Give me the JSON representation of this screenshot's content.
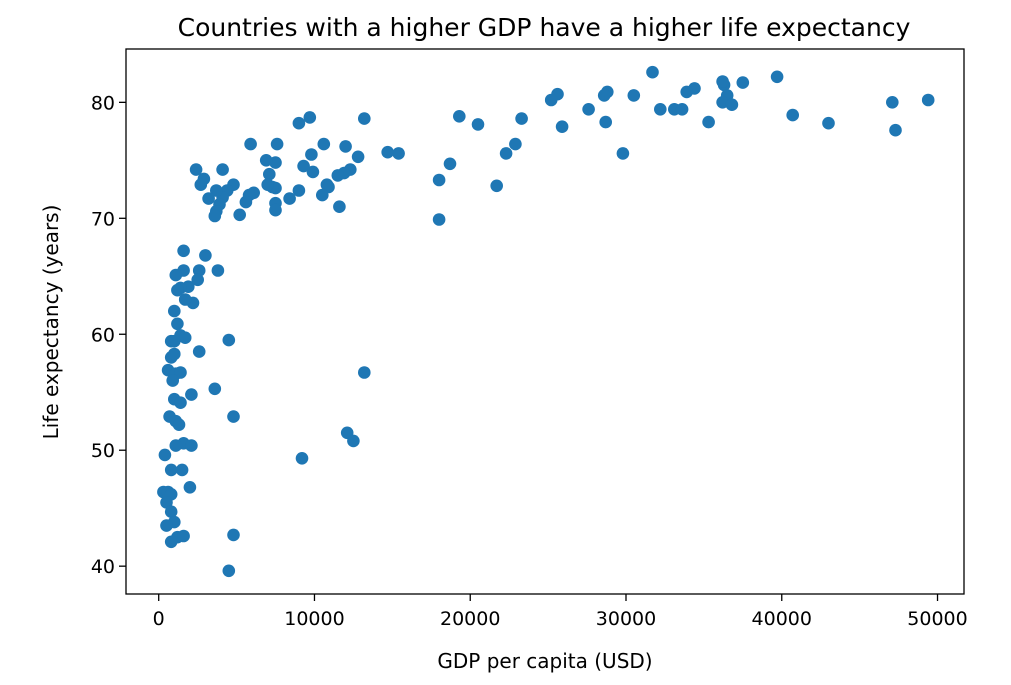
{
  "chart_data": {
    "type": "scatter",
    "title": "Countries with a higher GDP have a higher life expectancy",
    "xlabel": "GDP per capita (USD)",
    "ylabel": "Life expectancy (years)",
    "xlim": [
      -2100,
      51700
    ],
    "ylim": [
      37.6,
      84.6
    ],
    "xticks": [
      0,
      10000,
      20000,
      30000,
      40000,
      50000
    ],
    "yticks": [
      40,
      50,
      60,
      70,
      80
    ],
    "grid": false,
    "marker_color": "#1f77b4",
    "points": [
      [
        36300,
        81.5
      ],
      [
        31700,
        82.6
      ],
      [
        39700,
        82.2
      ],
      [
        37500,
        81.7
      ],
      [
        36200,
        81.8
      ],
      [
        36500,
        80.6
      ],
      [
        36200,
        80.0
      ],
      [
        36800,
        79.8
      ],
      [
        34400,
        81.2
      ],
      [
        33900,
        80.9
      ],
      [
        30500,
        80.6
      ],
      [
        28800,
        80.9
      ],
      [
        28600,
        80.6
      ],
      [
        27600,
        79.4
      ],
      [
        25600,
        80.7
      ],
      [
        25200,
        80.2
      ],
      [
        33100,
        79.4
      ],
      [
        33600,
        79.4
      ],
      [
        32200,
        79.4
      ],
      [
        35300,
        78.3
      ],
      [
        47100,
        80.0
      ],
      [
        49400,
        80.2
      ],
      [
        47300,
        77.6
      ],
      [
        40700,
        78.9
      ],
      [
        43000,
        78.2
      ],
      [
        28700,
        78.3
      ],
      [
        25900,
        77.9
      ],
      [
        29800,
        75.6
      ],
      [
        19300,
        78.8
      ],
      [
        20500,
        78.1
      ],
      [
        23300,
        78.6
      ],
      [
        22900,
        76.4
      ],
      [
        22300,
        75.6
      ],
      [
        21700,
        72.8
      ],
      [
        18000,
        73.3
      ],
      [
        18700,
        74.7
      ],
      [
        18000,
        69.9
      ],
      [
        15400,
        75.6
      ],
      [
        14700,
        75.7
      ],
      [
        13200,
        78.6
      ],
      [
        12800,
        75.3
      ],
      [
        12300,
        74.2
      ],
      [
        11900,
        73.9
      ],
      [
        12000,
        76.2
      ],
      [
        11500,
        73.7
      ],
      [
        11600,
        71.0
      ],
      [
        10800,
        72.9
      ],
      [
        10900,
        72.7
      ],
      [
        10600,
        76.4
      ],
      [
        10500,
        72.0
      ],
      [
        9900,
        74.0
      ],
      [
        9800,
        75.5
      ],
      [
        9700,
        78.7
      ],
      [
        9300,
        74.5
      ],
      [
        9000,
        78.2
      ],
      [
        9000,
        72.4
      ],
      [
        8400,
        71.7
      ],
      [
        7600,
        76.4
      ],
      [
        7500,
        74.8
      ],
      [
        7500,
        72.6
      ],
      [
        7500,
        71.3
      ],
      [
        7500,
        70.7
      ],
      [
        7100,
        73.8
      ],
      [
        7300,
        72.7
      ],
      [
        6900,
        75.0
      ],
      [
        7000,
        72.9
      ],
      [
        6100,
        72.2
      ],
      [
        5800,
        72.0
      ],
      [
        5600,
        71.4
      ],
      [
        5200,
        70.3
      ],
      [
        5900,
        76.4
      ],
      [
        4800,
        72.9
      ],
      [
        4400,
        72.4
      ],
      [
        4100,
        71.8
      ],
      [
        3900,
        71.2
      ],
      [
        3700,
        70.6
      ],
      [
        3600,
        70.2
      ],
      [
        3700,
        72.4
      ],
      [
        4100,
        74.2
      ],
      [
        3200,
        71.7
      ],
      [
        2900,
        73.4
      ],
      [
        2700,
        72.9
      ],
      [
        2400,
        74.2
      ],
      [
        3000,
        66.8
      ],
      [
        3800,
        65.5
      ],
      [
        2600,
        65.5
      ],
      [
        2500,
        64.7
      ],
      [
        2200,
        62.7
      ],
      [
        1900,
        64.1
      ],
      [
        1700,
        63.0
      ],
      [
        1600,
        65.5
      ],
      [
        1600,
        67.2
      ],
      [
        1400,
        64.0
      ],
      [
        1200,
        63.8
      ],
      [
        1100,
        65.1
      ],
      [
        1000,
        62.0
      ],
      [
        1200,
        60.9
      ],
      [
        1400,
        59.9
      ],
      [
        1700,
        59.7
      ],
      [
        1000,
        59.4
      ],
      [
        800,
        59.4
      ],
      [
        800,
        58.0
      ],
      [
        1000,
        58.3
      ],
      [
        2600,
        58.5
      ],
      [
        600,
        56.9
      ],
      [
        1100,
        56.6
      ],
      [
        1400,
        56.7
      ],
      [
        900,
        56.0
      ],
      [
        1000,
        54.4
      ],
      [
        1400,
        54.1
      ],
      [
        2100,
        54.8
      ],
      [
        700,
        52.9
      ],
      [
        1100,
        52.5
      ],
      [
        1300,
        52.2
      ],
      [
        1600,
        50.6
      ],
      [
        2100,
        50.4
      ],
      [
        1100,
        50.4
      ],
      [
        400,
        49.6
      ],
      [
        800,
        48.3
      ],
      [
        1500,
        48.3
      ],
      [
        2000,
        46.8
      ],
      [
        300,
        46.4
      ],
      [
        600,
        46.4
      ],
      [
        800,
        46.2
      ],
      [
        500,
        45.5
      ],
      [
        800,
        44.7
      ],
      [
        1000,
        43.8
      ],
      [
        500,
        43.5
      ],
      [
        1200,
        42.5
      ],
      [
        1600,
        42.6
      ],
      [
        800,
        42.1
      ],
      [
        4500,
        59.5
      ],
      [
        3600,
        55.3
      ],
      [
        4800,
        52.9
      ],
      [
        4800,
        42.7
      ],
      [
        4500,
        39.6
      ],
      [
        9200,
        49.3
      ],
      [
        13200,
        56.7
      ],
      [
        12100,
        51.5
      ],
      [
        12500,
        50.8
      ]
    ]
  }
}
